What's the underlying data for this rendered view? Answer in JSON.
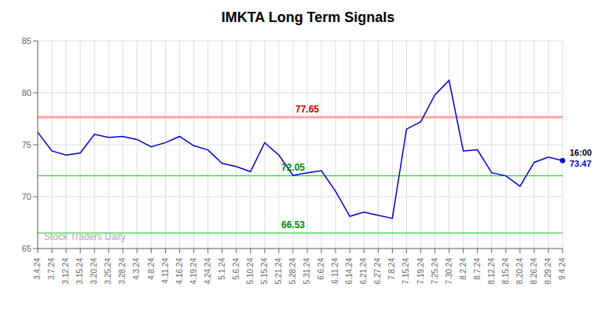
{
  "chart_data": {
    "type": "line",
    "title": "IMKTA Long Term Signals",
    "categories": [
      "3.4.24",
      "3.7.24",
      "3.12.24",
      "3.15.24",
      "3.20.24",
      "3.25.24",
      "3.28.24",
      "4.3.24",
      "4.8.24",
      "4.11.24",
      "4.16.24",
      "4.19.24",
      "4.24.24",
      "5.1.24",
      "5.6.24",
      "5.10.24",
      "5.15.24",
      "5.21.24",
      "5.28.24",
      "5.31.24",
      "6.6.24",
      "6.11.24",
      "6.14.24",
      "6.21.24",
      "6.27.24",
      "7.8.24",
      "7.15.24",
      "7.19.24",
      "7.25.24",
      "7.30.24",
      "8.2.24",
      "8.7.24",
      "8.12.24",
      "8.15.24",
      "8.20.24",
      "8.26.24",
      "8.29.24",
      "9.4.24"
    ],
    "values": [
      76.2,
      74.4,
      74.0,
      74.2,
      76.0,
      75.7,
      75.8,
      75.5,
      74.8,
      75.2,
      75.8,
      74.9,
      74.5,
      73.2,
      72.9,
      72.4,
      75.2,
      74.0,
      72.05,
      72.3,
      72.5,
      70.5,
      68.1,
      68.5,
      68.2,
      67.9,
      76.5,
      77.2,
      79.8,
      81.2,
      74.4,
      74.5,
      72.3,
      72.0,
      71.0,
      73.3,
      73.8,
      73.47
    ],
    "color": "#0000cc",
    "ylim": [
      65,
      85
    ],
    "yticks": [
      65,
      70,
      75,
      80,
      85
    ],
    "grid": true,
    "lines": [
      {
        "value": 77.65,
        "color": "#ff6666"
      },
      {
        "value": 72.0,
        "color": "#00cc00"
      },
      {
        "value": 66.5,
        "color": "#00cc00"
      }
    ],
    "bands": [
      {
        "from": 77.47,
        "to": 77.83,
        "color": "#ffcccc"
      }
    ],
    "annotations": [
      {
        "text": "77.65",
        "x": "5.31.24",
        "y": 77.65,
        "color": "#cc0000"
      },
      {
        "text": "72.05",
        "x": "5.28.24",
        "y": 72.05,
        "color": "#008800"
      },
      {
        "text": "66.53",
        "x": "5.28.24",
        "y": 66.53,
        "color": "#008800"
      }
    ],
    "last_point": {
      "time": "16:00",
      "time_color": "#000000",
      "label": "73.47",
      "color": "#0000cc"
    },
    "watermark": {
      "text": "Stock Traders Daily",
      "color": "#aaaaaa"
    }
  }
}
